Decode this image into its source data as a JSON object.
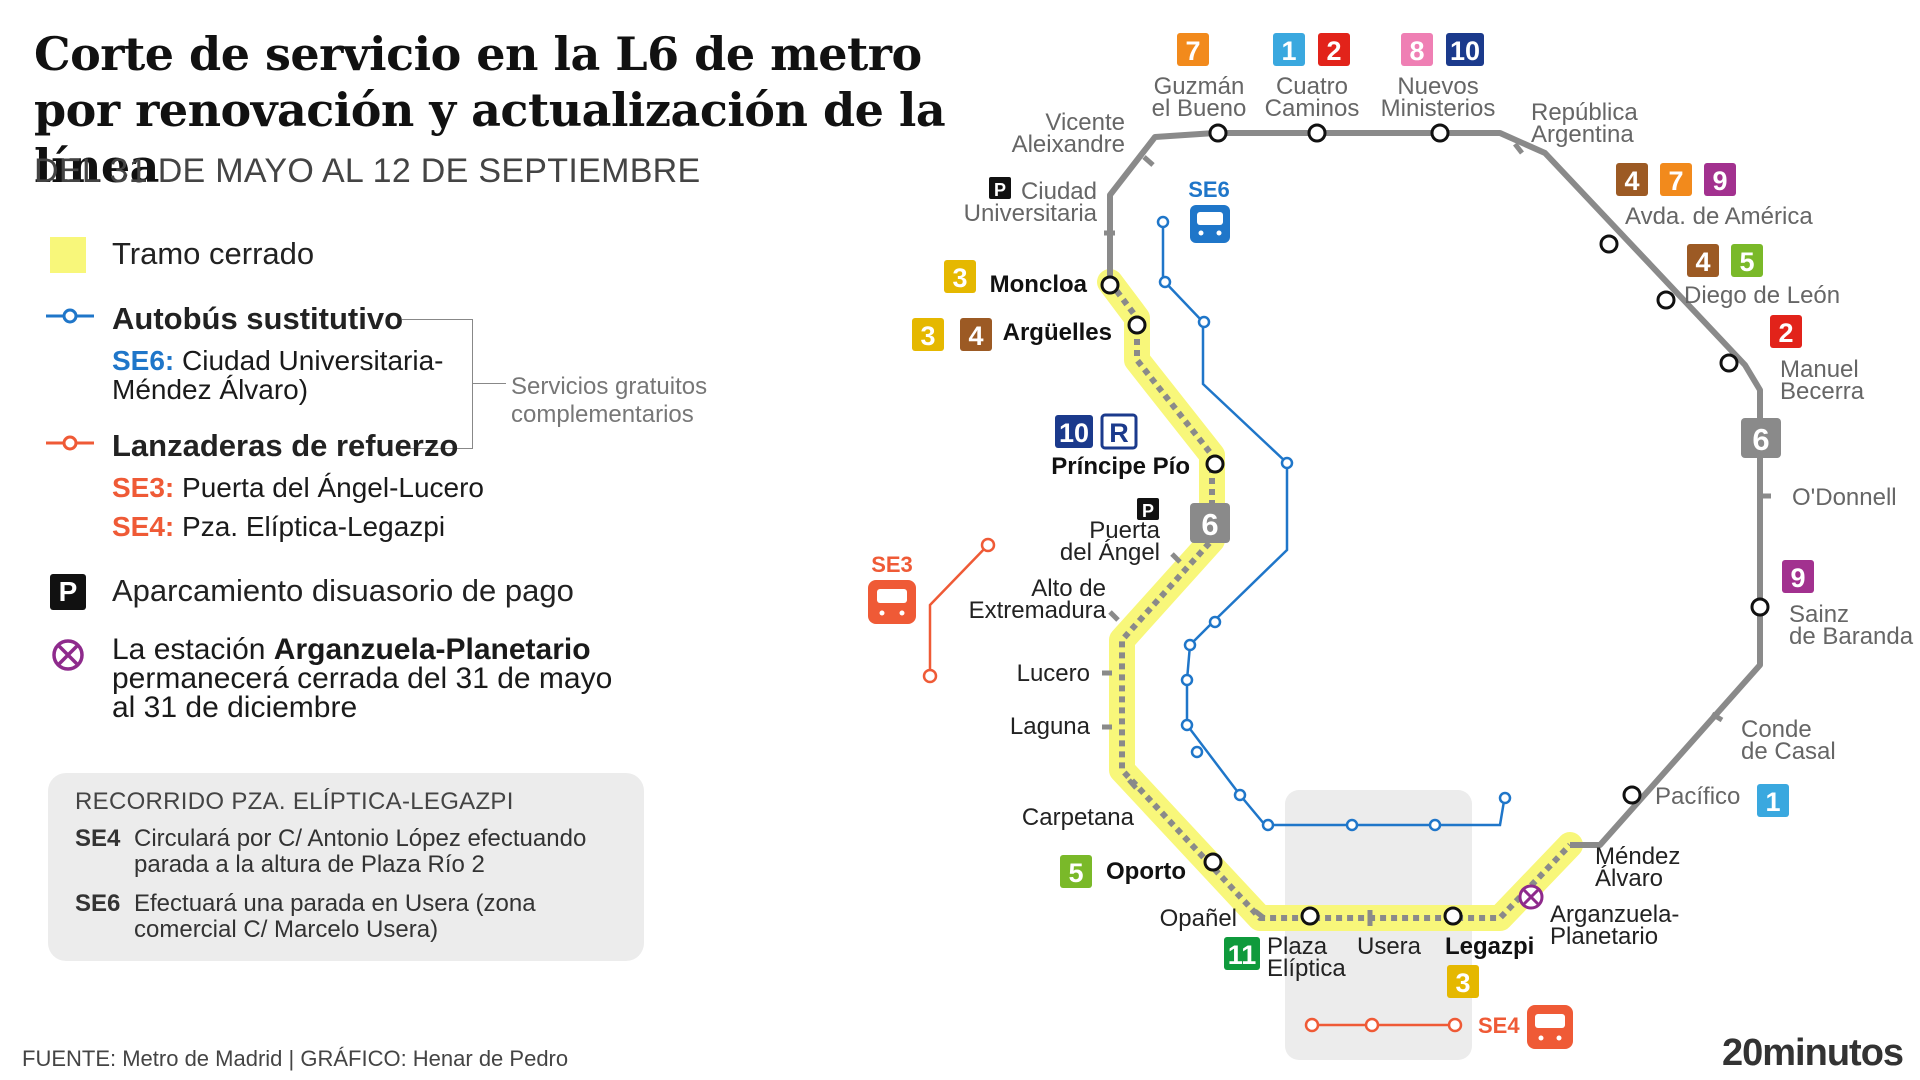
{
  "title": "Corte de servicio en la L6 de metro por renovación y actualización de la línea",
  "subtitle": "DEL 31 DE MAYO AL 12 DE SEPTIEMBRE",
  "legend": {
    "closed_section": "Tramo cerrado",
    "bus_replacement": "Autobús sustitutivo",
    "se6_code": "SE6:",
    "se6_route": "Ciudad Universitaria-Méndez Álvaro)",
    "free_services": "Servicios gratuitos complementarios",
    "shuttles": "Lanzaderas de refuerzo",
    "se3_code": "SE3:",
    "se3_route": "Puerta del Ángel-Lucero",
    "se4_code": "SE4:",
    "se4_route": "Pza. Elíptica-Legazpi",
    "parking": "Aparcamiento disuasorio de pago",
    "argan_prefix": "La estación",
    "argan_name": "Arganzuela-Planetario",
    "argan_suffix": "permanecerá cerrada del 31 de mayo al 31 de diciembre"
  },
  "route_box": {
    "title": "RECORRIDO PZA. ELÍPTICA-LEGAZPI",
    "se4_code": "SE4",
    "se4_text": "Circulará por C/ Antonio López efectuando parada a la altura de Plaza Río 2",
    "se6_code": "SE6",
    "se6_text": "Efectuará una parada en Usera (zona comercial C/ Marcelo Usera)"
  },
  "map": {
    "line_label": "6",
    "stations": {
      "vicente_aleixandre": [
        "Vicente",
        "Aleixandre"
      ],
      "guzman": [
        "Guzmán",
        "el Bueno"
      ],
      "cuatro_caminos": [
        "Cuatro",
        "Caminos"
      ],
      "nuevos_ministerios": [
        "Nuevos",
        "Ministerios"
      ],
      "republica_argentina": [
        "República",
        "Argentina"
      ],
      "avda_america": "Avda. de América",
      "diego_de_leon": "Diego de León",
      "manuel_becerra": [
        "Manuel",
        "Becerra"
      ],
      "odonnell": "O'Donnell",
      "sainz_de_baranda": [
        "Sainz",
        "de Baranda"
      ],
      "conde_de_casal": [
        "Conde",
        "de Casal"
      ],
      "pacifico": "Pacífico",
      "mendez_alvaro": [
        "Méndez",
        "Álvaro"
      ],
      "arganzuela": [
        "Arganzuela-",
        "Planetario"
      ],
      "legazpi": "Legazpi",
      "usera": "Usera",
      "plaza_eliptica": [
        "Plaza",
        "Elíptica"
      ],
      "opanel": "Opañel",
      "oporto": "Oporto",
      "carpetana": "Carpetana",
      "laguna": "Laguna",
      "lucero": "Lucero",
      "alto_extremadura": [
        "Alto de",
        "Extremadura"
      ],
      "puerta_angel": [
        "Puerta",
        "del Ángel"
      ],
      "principe_pio": "Príncipe Pío",
      "arguelles": "Argüelles",
      "moncloa": "Moncloa",
      "ciudad_universitaria": [
        "Ciudad",
        "Universitaria"
      ]
    },
    "badges": {
      "se6": "SE6",
      "se3": "SE3",
      "se4": "SE4",
      "parking": "P",
      "renfe": "R"
    },
    "line_numbers": {
      "guzman": [
        "7"
      ],
      "cuatro_caminos": [
        "1",
        "2"
      ],
      "nuevos_ministerios": [
        "8",
        "10"
      ],
      "avda_america": [
        "4",
        "7",
        "9"
      ],
      "diego_de_leon": [
        "4",
        "5"
      ],
      "manuel_becerra": [
        "2"
      ],
      "sainz_de_baranda": [
        "9"
      ],
      "pacifico": [
        "1"
      ],
      "legazpi": [
        "3"
      ],
      "plaza_eliptica": [
        "11"
      ],
      "oporto": [
        "5"
      ],
      "principe_pio": [
        "10"
      ],
      "arguelles": [
        "3",
        "4"
      ],
      "moncloa": [
        "3"
      ]
    },
    "colors": {
      "line6": "#8a8a8a",
      "closed": "#f8f77a",
      "bus": "#1f76c9",
      "shuttle": "#ef5a36",
      "L1": "#3aa8df",
      "L2": "#e2231a",
      "L3": "#e5b800",
      "L4": "#9c5a24",
      "L5": "#7ab929",
      "L7": "#f28a1c",
      "L8": "#ef7fb4",
      "L9": "#a2318f",
      "L10": "#1b3a8c",
      "L11": "#0f9a3c"
    }
  },
  "footer": {
    "source": "FUENTE: Metro de Madrid  |  GRÁFICO: Henar de Pedro",
    "logo": "20minutos"
  }
}
